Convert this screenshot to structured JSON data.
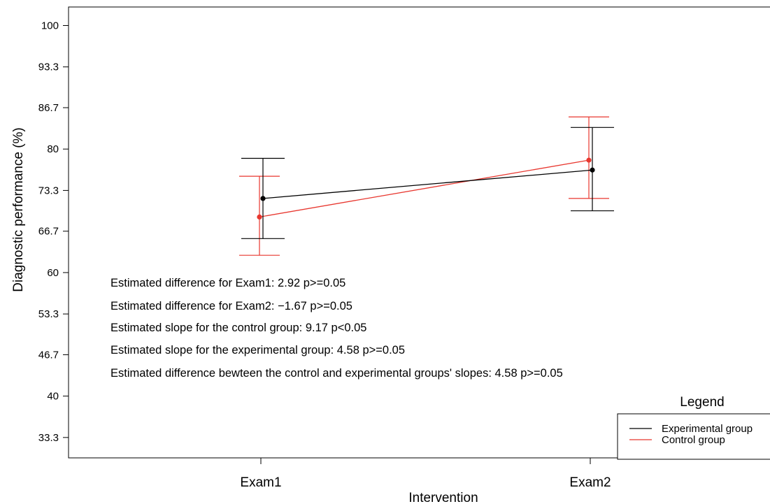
{
  "chart_data": {
    "type": "line",
    "xlabel": "Intervention",
    "ylabel": "Diagnostic performance (%)",
    "categories": [
      "Exam1",
      "Exam2"
    ],
    "ylim": [
      30,
      103
    ],
    "yticks": [
      "100",
      "93.3",
      "86.7",
      "80",
      "73.3",
      "66.7",
      "60",
      "53.3",
      "46.7",
      "40",
      "33.3"
    ],
    "grid": false,
    "series": [
      {
        "name": "Experimental group",
        "color": "#000000",
        "values": [
          72.0,
          76.6
        ],
        "lower": [
          65.5,
          70.0
        ],
        "upper": [
          78.5,
          83.5
        ]
      },
      {
        "name": "Control group",
        "color": "#e8372f",
        "values": [
          69.0,
          78.2
        ],
        "lower": [
          62.8,
          72.0
        ],
        "upper": [
          75.6,
          85.2
        ]
      }
    ],
    "legend": {
      "title": "Legend",
      "position": "bottom-right"
    },
    "annotations": [
      "Estimated difference  for Exam1: 2.92 p>=0.05",
      "Estimated difference for Exam2: −1.67 p>=0.05",
      "Estimated slope for the control group: 9.17 p<0.05",
      "Estimated slope for the experimental group: 4.58 p>=0.05",
      "Estimated difference bewteen the control and experimental groups' slopes: 4.58 p>=0.05"
    ]
  }
}
